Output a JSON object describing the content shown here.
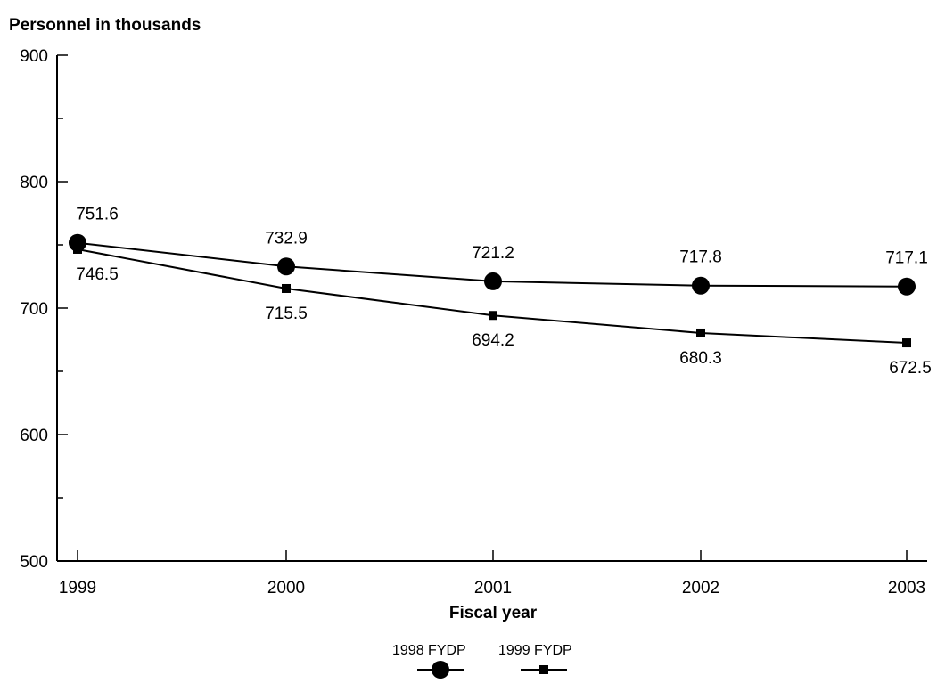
{
  "chart_data": {
    "type": "line",
    "title": "",
    "ylabel": "Personnel in thousands",
    "xlabel": "Fiscal year",
    "x": [
      1999,
      2000,
      2001,
      2002,
      2003
    ],
    "x_tick_labels": [
      "1999",
      "2000",
      "2001",
      "2002",
      "2003"
    ],
    "ylim": [
      500,
      900
    ],
    "y_ticks": [
      500,
      600,
      700,
      800,
      900
    ],
    "y_tick_labels": [
      "500",
      "600",
      "700",
      "800",
      "900"
    ],
    "grid": false,
    "legend_position": "bottom-center",
    "series": [
      {
        "name": "1998 FYDP",
        "marker": "circle",
        "color": "#000000",
        "values": [
          751.6,
          732.9,
          721.2,
          717.8,
          717.1
        ],
        "labels": [
          "751.6",
          "732.9",
          "721.2",
          "717.8",
          "717.1"
        ]
      },
      {
        "name": "1999 FYDP",
        "marker": "square",
        "color": "#000000",
        "values": [
          746.5,
          715.5,
          694.2,
          680.3,
          672.5
        ],
        "labels": [
          "746.5",
          "715.5",
          "694.2",
          "680.3",
          "672.5"
        ]
      }
    ]
  }
}
